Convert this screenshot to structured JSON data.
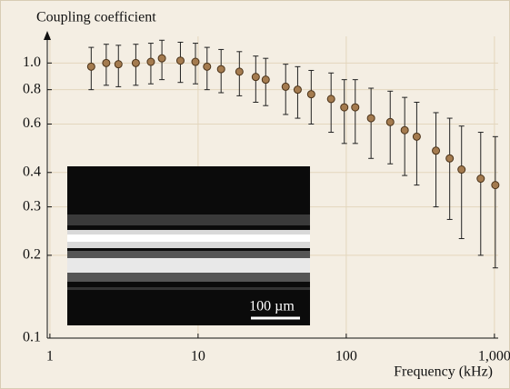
{
  "chart_data": {
    "type": "scatter",
    "ylabel": "Coupling coefficient",
    "xlabel": "Frequency (kHz)",
    "log_x": true,
    "log_y": true,
    "grid": true,
    "xlim": [
      0.96,
      1060
    ],
    "ylim": [
      0.1,
      1.25
    ],
    "xticks": [
      1,
      10,
      100,
      {
        "value": 1000,
        "label": "1,000"
      }
    ],
    "yticks": [
      {
        "value": 0.1,
        "label": "0.1"
      },
      {
        "value": 0.2,
        "label": "0.2"
      },
      {
        "value": 0.3,
        "label": "0.3"
      },
      {
        "value": 0.4,
        "label": "0.4"
      },
      {
        "value": 0.6,
        "label": "0.6"
      },
      {
        "value": 0.8,
        "label": "0.8"
      },
      {
        "value": 1.0,
        "label": "1.0"
      }
    ],
    "annotation": "100 µm",
    "series": [
      {
        "color": "#a47b4f",
        "x": [
          1.9,
          2.4,
          2.9,
          3.8,
          4.8,
          5.7,
          7.6,
          9.6,
          11.5,
          14.3,
          19,
          24.5,
          28.6,
          39,
          47,
          58,
          79,
          97,
          115,
          147,
          198,
          248,
          299,
          403,
          499,
          600,
          808,
          1014
        ],
        "values": [
          0.97,
          1.0,
          0.99,
          1.0,
          1.01,
          1.04,
          1.02,
          1.01,
          0.97,
          0.95,
          0.93,
          0.89,
          0.87,
          0.82,
          0.8,
          0.77,
          0.74,
          0.69,
          0.69,
          0.63,
          0.61,
          0.57,
          0.54,
          0.48,
          0.45,
          0.41,
          0.38,
          0.36
        ],
        "errors": [
          0.17,
          0.17,
          0.17,
          0.17,
          0.17,
          0.17,
          0.17,
          0.17,
          0.17,
          0.17,
          0.17,
          0.17,
          0.17,
          0.17,
          0.17,
          0.17,
          0.18,
          0.18,
          0.18,
          0.18,
          0.18,
          0.18,
          0.18,
          0.18,
          0.18,
          0.18,
          0.18,
          0.18
        ]
      }
    ]
  }
}
